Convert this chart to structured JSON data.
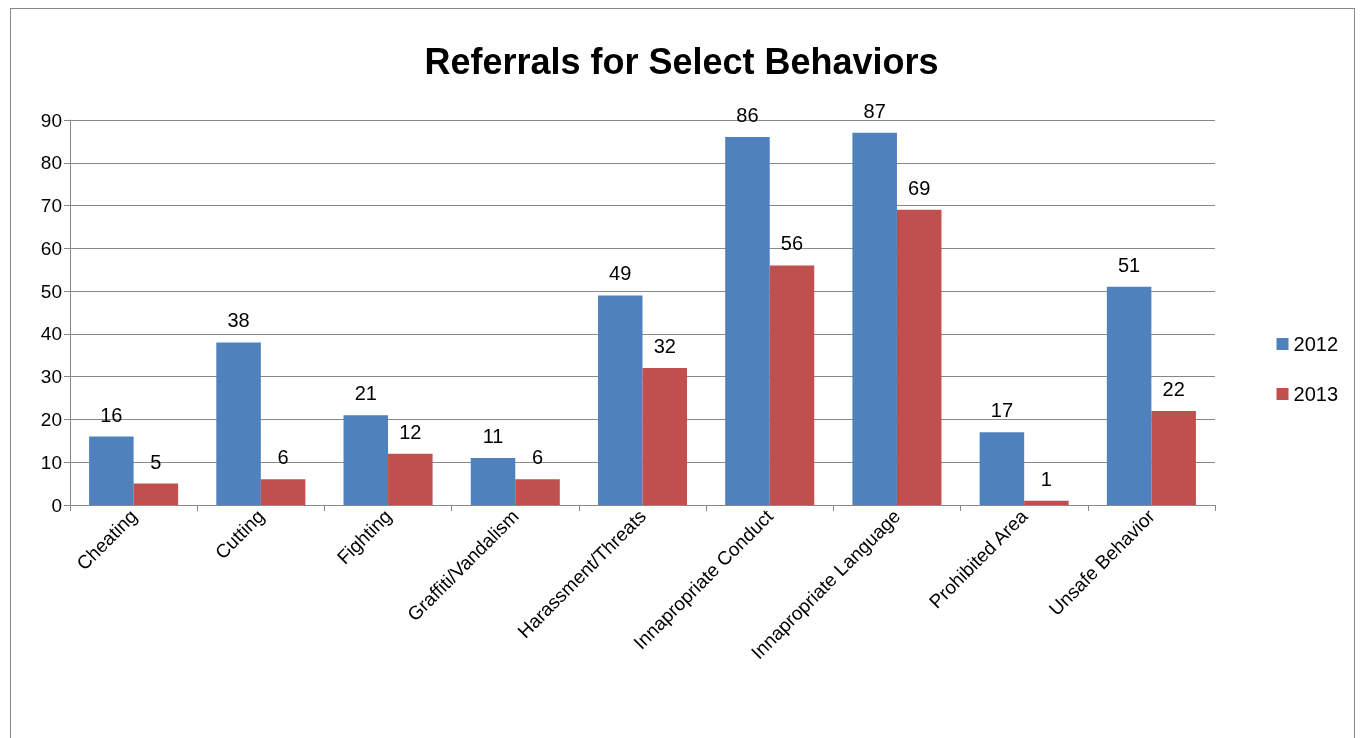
{
  "chart_data": {
    "type": "bar",
    "title": "Referrals for Select Behaviors",
    "categories": [
      "Cheating",
      "Cutting",
      "Fighting",
      "Graffiti/Vandalism",
      "Harassment/Threats",
      "Innapropriate Conduct",
      "Innapropriate Language",
      "Prohibited Area",
      "Unsafe Behavior"
    ],
    "series": [
      {
        "name": "2012",
        "color": "#4f81bd",
        "values": [
          16,
          38,
          21,
          11,
          49,
          86,
          87,
          17,
          51
        ]
      },
      {
        "name": "2013",
        "color": "#c0504d",
        "values": [
          5,
          6,
          12,
          6,
          32,
          56,
          69,
          1,
          22
        ]
      }
    ],
    "ylim": [
      0,
      90
    ],
    "yticks": [
      0,
      10,
      20,
      30,
      40,
      50,
      60,
      70,
      80,
      90
    ],
    "grid": "y",
    "legend": "right",
    "data_labels": true
  }
}
